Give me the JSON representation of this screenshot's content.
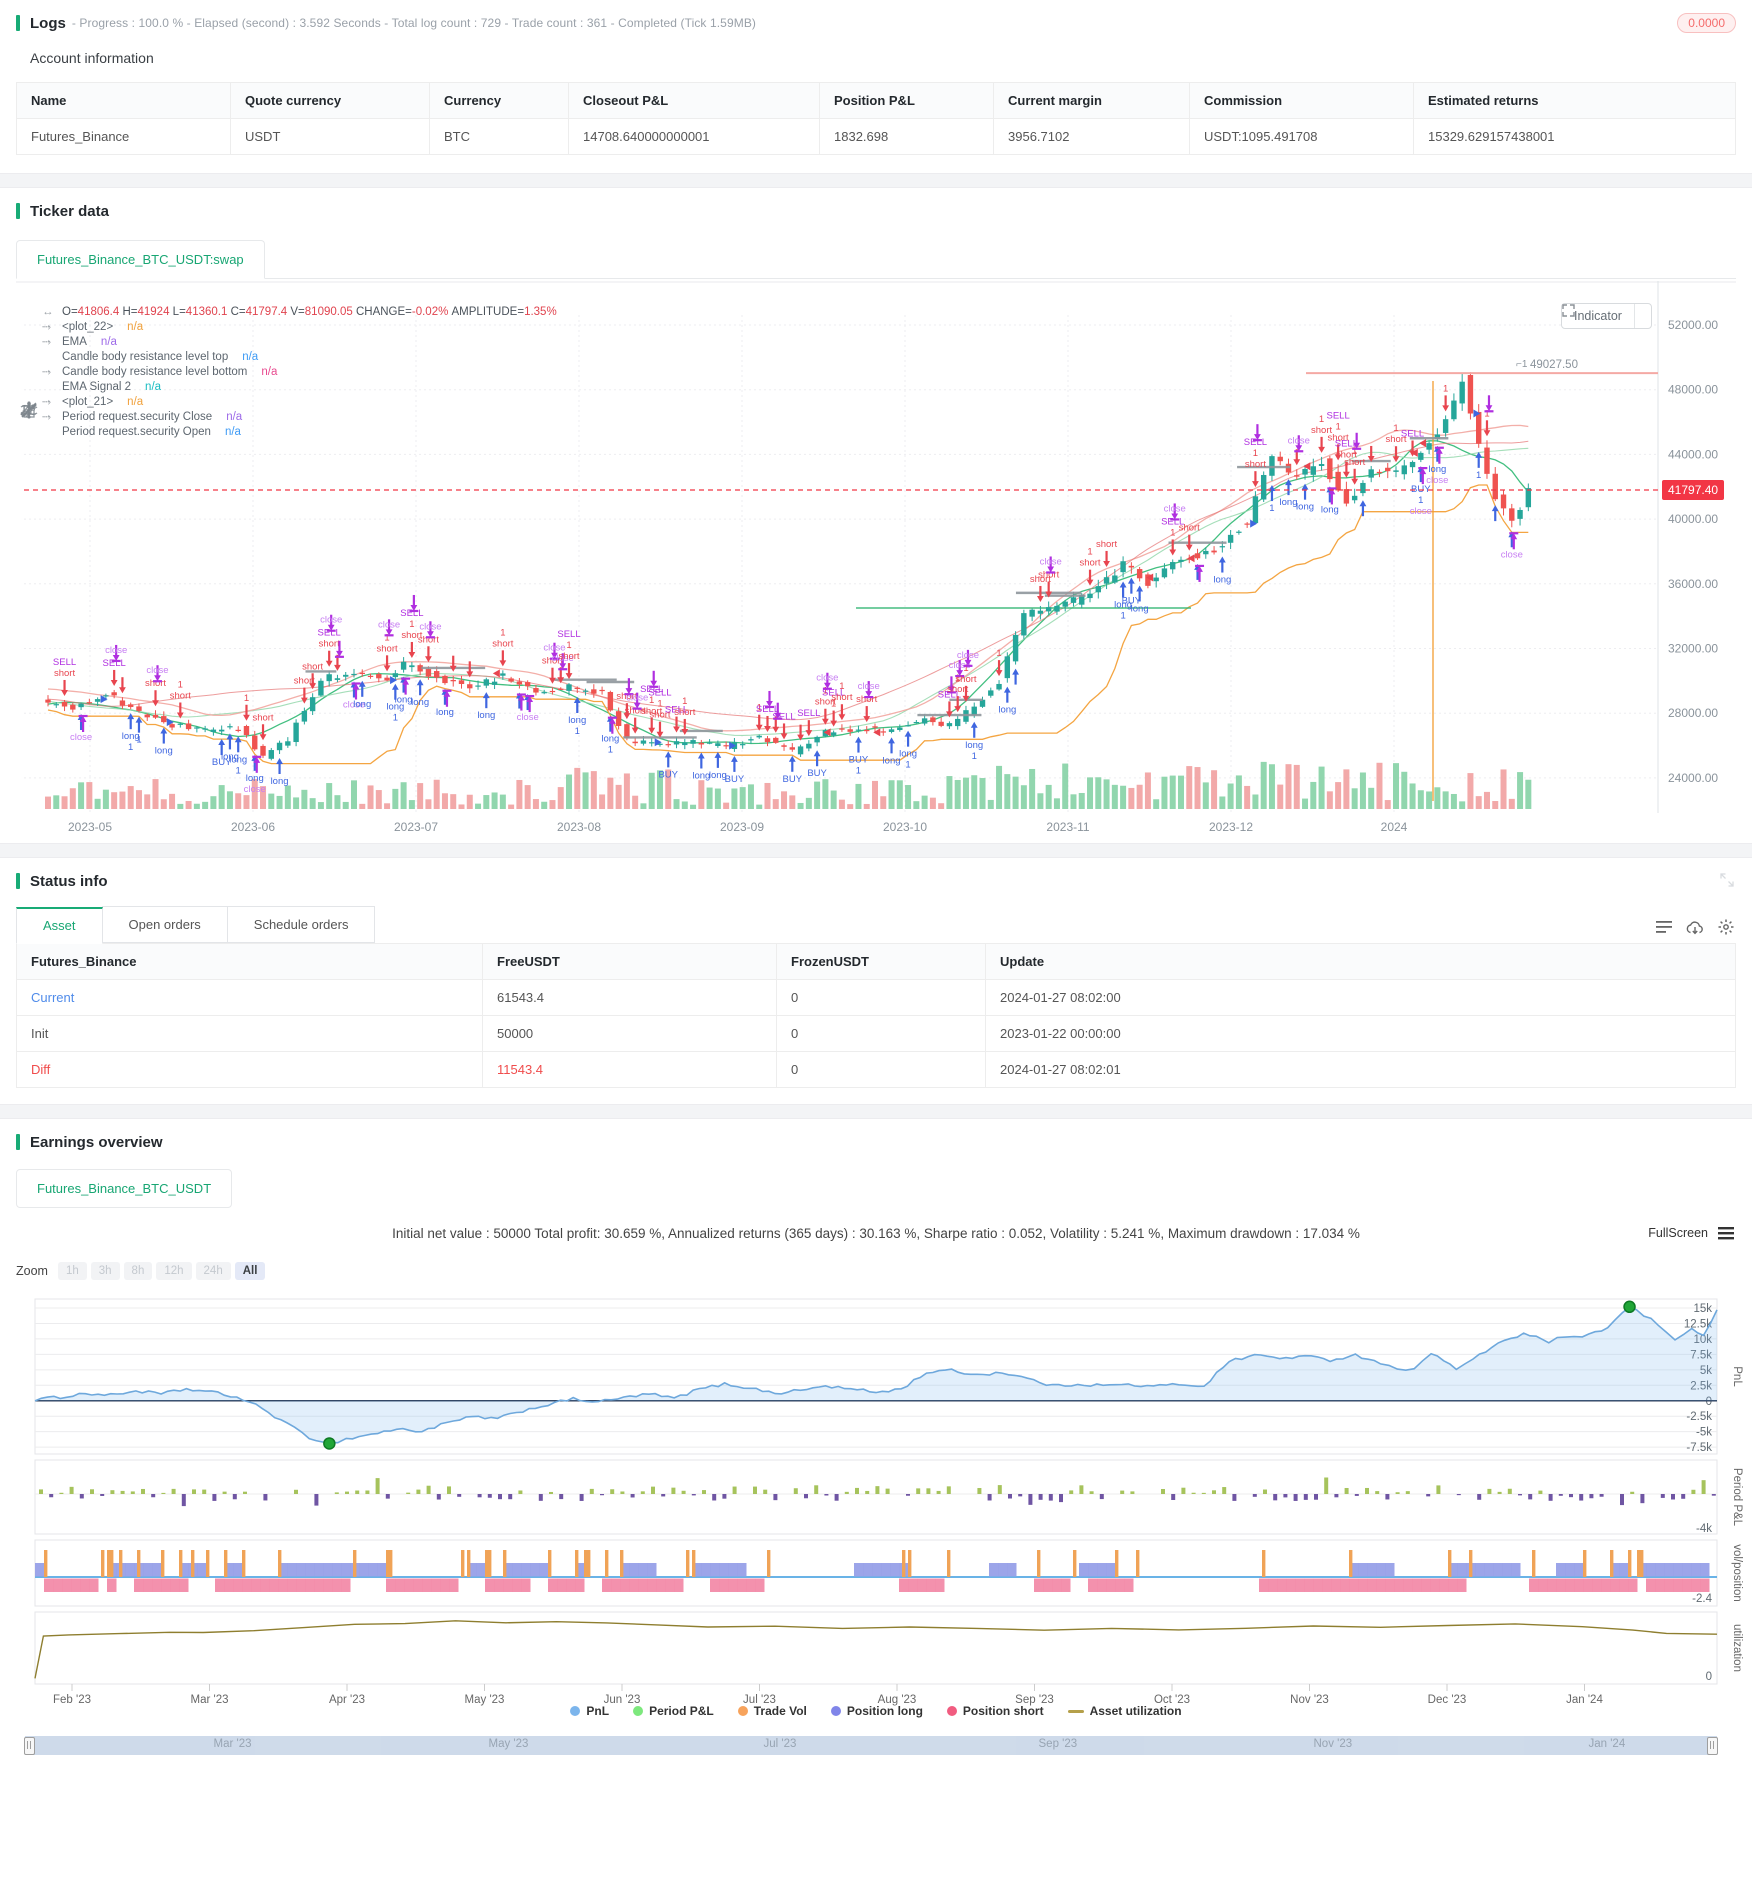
{
  "logs": {
    "title": "Logs",
    "summary": "- Progress : 100.0 % - Elapsed (second) : 3.592  Seconds - Total log count : 729 - Trade count : 361 - Completed (Tick 1.59MB)",
    "badge": "0.0000"
  },
  "account": {
    "heading": "Account information",
    "columns": [
      "Name",
      "Quote currency",
      "Currency",
      "Closeout P&L",
      "Position P&L",
      "Current margin",
      "Commission",
      "Estimated returns"
    ],
    "rows": [
      [
        "Futures_Binance",
        "USDT",
        "BTC",
        "14708.640000000001",
        "1832.698",
        "3956.7102",
        "USDT:1095.491708",
        "15329.629157438001"
      ]
    ]
  },
  "ticker": {
    "section_title": "Ticker data",
    "tab": "Futures_Binance_BTC_USDT:swap",
    "indicator_button": "Indicator",
    "legend_ohlc": [
      [
        "O=",
        "41806.4"
      ],
      [
        "H=",
        "41924"
      ],
      [
        "L=",
        "41360.1"
      ],
      [
        "C=",
        "41797.4"
      ],
      [
        "V=",
        "81090.05"
      ],
      [
        "CHANGE=",
        "-0.02%"
      ],
      [
        "AMPLITUDE=",
        "1.35%"
      ]
    ],
    "indicators": [
      {
        "name": "<plot_22>",
        "value": "n/a",
        "color": "#f0a13c",
        "icon": true
      },
      {
        "name": "EMA",
        "value": "n/a",
        "color": "#9d6ae8",
        "icon": true
      },
      {
        "name": "Candle body resistance level top",
        "value": "n/a",
        "color": "#3f9bf5",
        "icon": false
      },
      {
        "name": "Candle body resistance level bottom",
        "value": "n/a",
        "color": "#e84a8f",
        "icon": true
      },
      {
        "name": "EMA Signal 2",
        "value": "n/a",
        "color": "#19bdc2",
        "icon": false
      },
      {
        "name": "<plot_21>",
        "value": "n/a",
        "color": "#f0a13c",
        "icon": true
      },
      {
        "name": "Period request.security Close",
        "value": "n/a",
        "color": "#9d6ae8",
        "icon": true
      },
      {
        "name": "Period request.security Open",
        "value": "n/a",
        "color": "#3f9bf5",
        "icon": false
      }
    ],
    "y_ticks": [
      "52000.00",
      "48000.00",
      "44000.00",
      "40000.00",
      "36000.00",
      "32000.00",
      "28000.00",
      "24000.00"
    ],
    "x_ticks": [
      "2023-05",
      "2023-06",
      "2023-07",
      "2023-08",
      "2023-09",
      "2023-10",
      "2023-11",
      "2023-12",
      "2024"
    ],
    "price_line": "41797.40",
    "note": "49027.50",
    "annotation_words": {
      "above": [
        "short",
        "SELL",
        "close",
        "1"
      ],
      "below": [
        "long",
        "BUY",
        "close",
        "1"
      ]
    }
  },
  "status": {
    "section_title": "Status info",
    "tabs": [
      "Asset",
      "Open orders",
      "Schedule orders"
    ],
    "active_tab": "Asset",
    "columns": [
      "Futures_Binance",
      "FreeUSDT",
      "FrozenUSDT",
      "Update"
    ],
    "rows": [
      {
        "cells": [
          "Current",
          "61543.4",
          "0",
          "2024-01-27 08:02:00"
        ],
        "classes": [
          "c-blue",
          "",
          "",
          ""
        ]
      },
      {
        "cells": [
          "Init",
          "50000",
          "0",
          "2023-01-22 00:00:00"
        ],
        "classes": [
          "",
          "",
          "",
          ""
        ]
      },
      {
        "cells": [
          "Diff",
          "11543.4",
          "0",
          "2024-01-27 08:02:01"
        ],
        "classes": [
          "c-red",
          "c-red",
          "",
          ""
        ]
      }
    ]
  },
  "earnings": {
    "section_title": "Earnings overview",
    "tab": "Futures_Binance_BTC_USDT",
    "stats": "Initial net value : 50000 Total profit: 30.659 %, Annualized returns (365 days) : 30.163 %, Sharpe ratio : 0.052, Volatility : 5.241 %, Maximum drawdown : 17.034 %",
    "fullscreen_label": "FullScreen",
    "zoom": {
      "label": "Zoom",
      "options": [
        "1h",
        "3h",
        "8h",
        "12h",
        "24h",
        "All"
      ],
      "active": "All"
    },
    "legend": [
      {
        "label": "PnL",
        "color": "#7cb5ec",
        "type": "dot"
      },
      {
        "label": "Period P&L",
        "color": "#7de87d",
        "type": "dot"
      },
      {
        "label": "Trade Vol",
        "color": "#f7a35c",
        "type": "dot"
      },
      {
        "label": "Position long",
        "color": "#8085e9",
        "type": "dot"
      },
      {
        "label": "Position short",
        "color": "#f15c80",
        "type": "dot"
      },
      {
        "label": "Asset utilization",
        "color": "#b5a04a",
        "type": "line"
      }
    ],
    "x_labels": [
      "Feb '23",
      "Mar '23",
      "Apr '23",
      "May '23",
      "Jun '23",
      "Jul '23",
      "Aug '23",
      "Sep '23",
      "Oct '23",
      "Nov '23",
      "Dec '23",
      "Jan '24"
    ],
    "navigator_labels": [
      "Mar '23",
      "May '23",
      "Jul '23",
      "Sep '23",
      "Nov '23",
      "Jan '24"
    ],
    "axes": {
      "pnl": {
        "title": "PnL",
        "ticks": [
          "15k",
          "12.5k",
          "10k",
          "7.5k",
          "5k",
          "2.5k",
          "0",
          "-2.5k",
          "-5k",
          "-7.5k"
        ]
      },
      "period": {
        "title": "Period P&L",
        "min_label": "-4k"
      },
      "vol": {
        "title": "vol/position",
        "min_label": "-2.4"
      },
      "util": {
        "title": "utilization",
        "min_label": "0"
      }
    }
  },
  "chart_data": [
    {
      "type": "candlestick",
      "title": "Futures_Binance_BTC_USDT:swap",
      "last_price": 41797.4,
      "ohlc_last": {
        "open": 41806.4,
        "high": 41924,
        "low": 41360.1,
        "close": 41797.4,
        "volume": 81090.05,
        "change_pct": -0.02,
        "amplitude_pct": 1.35
      },
      "note_price": 49027.5,
      "y_ticks": [
        52000,
        48000,
        44000,
        40000,
        36000,
        32000,
        28000,
        24000
      ],
      "x_months": [
        "2023-05",
        "2023-06",
        "2023-07",
        "2023-08",
        "2023-09",
        "2023-10",
        "2023-11",
        "2023-12",
        "2024"
      ],
      "price_anchors": [
        [
          0,
          28800
        ],
        [
          4,
          28300
        ],
        [
          8,
          29300
        ],
        [
          12,
          28000
        ],
        [
          16,
          27300
        ],
        [
          20,
          26900
        ],
        [
          24,
          27100
        ],
        [
          27,
          25300
        ],
        [
          30,
          26400
        ],
        [
          34,
          30100
        ],
        [
          38,
          30500
        ],
        [
          42,
          30200
        ],
        [
          44,
          31000
        ],
        [
          48,
          30200
        ],
        [
          52,
          29600
        ],
        [
          56,
          30300
        ],
        [
          60,
          29300
        ],
        [
          64,
          29600
        ],
        [
          68,
          29300
        ],
        [
          71,
          26300
        ],
        [
          75,
          26000
        ],
        [
          79,
          26200
        ],
        [
          83,
          25900
        ],
        [
          87,
          26600
        ],
        [
          91,
          25600
        ],
        [
          95,
          26800
        ],
        [
          99,
          27100
        ],
        [
          103,
          26900
        ],
        [
          107,
          27600
        ],
        [
          110,
          27200
        ],
        [
          113,
          28400
        ],
        [
          116,
          30000
        ],
        [
          119,
          34200
        ],
        [
          123,
          34600
        ],
        [
          127,
          35300
        ],
        [
          131,
          37200
        ],
        [
          134,
          36100
        ],
        [
          138,
          37500
        ],
        [
          142,
          38000
        ],
        [
          146,
          40000
        ],
        [
          149,
          43800
        ],
        [
          152,
          42500
        ],
        [
          155,
          43500
        ],
        [
          158,
          40900
        ],
        [
          161,
          43000
        ],
        [
          164,
          42800
        ],
        [
          167,
          44200
        ],
        [
          170,
          46100
        ],
        [
          172,
          48600
        ],
        [
          174,
          44500
        ],
        [
          176,
          41500
        ],
        [
          178,
          39800
        ],
        [
          180,
          41797
        ]
      ]
    },
    {
      "type": "multi-pane-timeseries",
      "panes": [
        "PnL (area)",
        "Period P&L (columns +/-)",
        "vol/position (bands + spikes)",
        "utilization (line)"
      ],
      "pnl_points": [
        [
          0,
          0.2
        ],
        [
          0.015,
          0.6
        ],
        [
          0.03,
          1.2
        ],
        [
          0.045,
          0.9
        ],
        [
          0.06,
          1.6
        ],
        [
          0.075,
          1.1
        ],
        [
          0.09,
          1.9
        ],
        [
          0.105,
          1.4
        ],
        [
          0.12,
          0.6
        ],
        [
          0.135,
          -1.2
        ],
        [
          0.15,
          -3.8
        ],
        [
          0.163,
          -5.9
        ],
        [
          0.175,
          -6.9
        ],
        [
          0.185,
          -6.2
        ],
        [
          0.2,
          -5.4
        ],
        [
          0.215,
          -4.6
        ],
        [
          0.23,
          -4.9
        ],
        [
          0.245,
          -3.6
        ],
        [
          0.26,
          -2.6
        ],
        [
          0.275,
          -2.9
        ],
        [
          0.29,
          -1.6
        ],
        [
          0.305,
          -0.6
        ],
        [
          0.32,
          0.3
        ],
        [
          0.335,
          -0.2
        ],
        [
          0.35,
          0.5
        ],
        [
          0.365,
          1.1
        ],
        [
          0.38,
          0.4
        ],
        [
          0.395,
          1.9
        ],
        [
          0.41,
          2.7
        ],
        [
          0.425,
          2.1
        ],
        [
          0.44,
          1.2
        ],
        [
          0.455,
          1.7
        ],
        [
          0.47,
          2.4
        ],
        [
          0.485,
          1.9
        ],
        [
          0.5,
          1.4
        ],
        [
          0.515,
          1.9
        ],
        [
          0.53,
          4.6
        ],
        [
          0.545,
          4.9
        ],
        [
          0.56,
          4.2
        ],
        [
          0.575,
          4.6
        ],
        [
          0.59,
          3.6
        ],
        [
          0.605,
          2.4
        ],
        [
          0.62,
          2.7
        ],
        [
          0.635,
          2.5
        ],
        [
          0.65,
          2.6
        ],
        [
          0.665,
          2.3
        ],
        [
          0.68,
          2.7
        ],
        [
          0.695,
          2.4
        ],
        [
          0.71,
          6.4
        ],
        [
          0.725,
          7.4
        ],
        [
          0.74,
          6.9
        ],
        [
          0.755,
          7.2
        ],
        [
          0.77,
          6.6
        ],
        [
          0.785,
          7.4
        ],
        [
          0.8,
          6.2
        ],
        [
          0.81,
          4.9
        ],
        [
          0.82,
          5.4
        ],
        [
          0.83,
          7.7
        ],
        [
          0.845,
          5.2
        ],
        [
          0.855,
          6.6
        ],
        [
          0.87,
          9.4
        ],
        [
          0.885,
          10.8
        ],
        [
          0.9,
          9.6
        ],
        [
          0.91,
          10.4
        ],
        [
          0.92,
          10.1
        ],
        [
          0.935,
          11.9
        ],
        [
          0.948,
          15.2
        ],
        [
          0.965,
          12.4
        ],
        [
          0.975,
          9.7
        ],
        [
          0.985,
          11.9
        ],
        [
          0.992,
          10.4
        ],
        [
          1,
          14.7
        ]
      ],
      "pnl_min_marker": {
        "x": 0.175,
        "value": -6.9
      },
      "pnl_max_marker": {
        "x": 0.948,
        "value": 15.2
      },
      "utilization_points": [
        [
          0,
          0.02
        ],
        [
          0.005,
          0.55
        ],
        [
          0.02,
          0.56
        ],
        [
          0.05,
          0.58
        ],
        [
          0.08,
          0.6
        ],
        [
          0.1,
          0.59
        ],
        [
          0.13,
          0.62
        ],
        [
          0.16,
          0.66
        ],
        [
          0.19,
          0.69
        ],
        [
          0.22,
          0.71
        ],
        [
          0.25,
          0.74
        ],
        [
          0.28,
          0.72
        ],
        [
          0.31,
          0.73
        ],
        [
          0.34,
          0.71
        ],
        [
          0.37,
          0.69
        ],
        [
          0.4,
          0.66
        ],
        [
          0.44,
          0.67
        ],
        [
          0.48,
          0.65
        ],
        [
          0.52,
          0.66
        ],
        [
          0.56,
          0.64
        ],
        [
          0.6,
          0.62
        ],
        [
          0.64,
          0.64
        ],
        [
          0.68,
          0.63
        ],
        [
          0.72,
          0.65
        ],
        [
          0.76,
          0.67
        ],
        [
          0.8,
          0.66
        ],
        [
          0.84,
          0.68
        ],
        [
          0.88,
          0.7
        ],
        [
          0.92,
          0.67
        ],
        [
          0.95,
          0.62
        ],
        [
          0.97,
          0.58
        ],
        [
          1,
          0.57
        ]
      ],
      "pnl_axis_range": [
        -7.5,
        15
      ],
      "period_axis_min": -4,
      "vol_axis_min": -2.4,
      "util_axis_min": 0
    }
  ]
}
